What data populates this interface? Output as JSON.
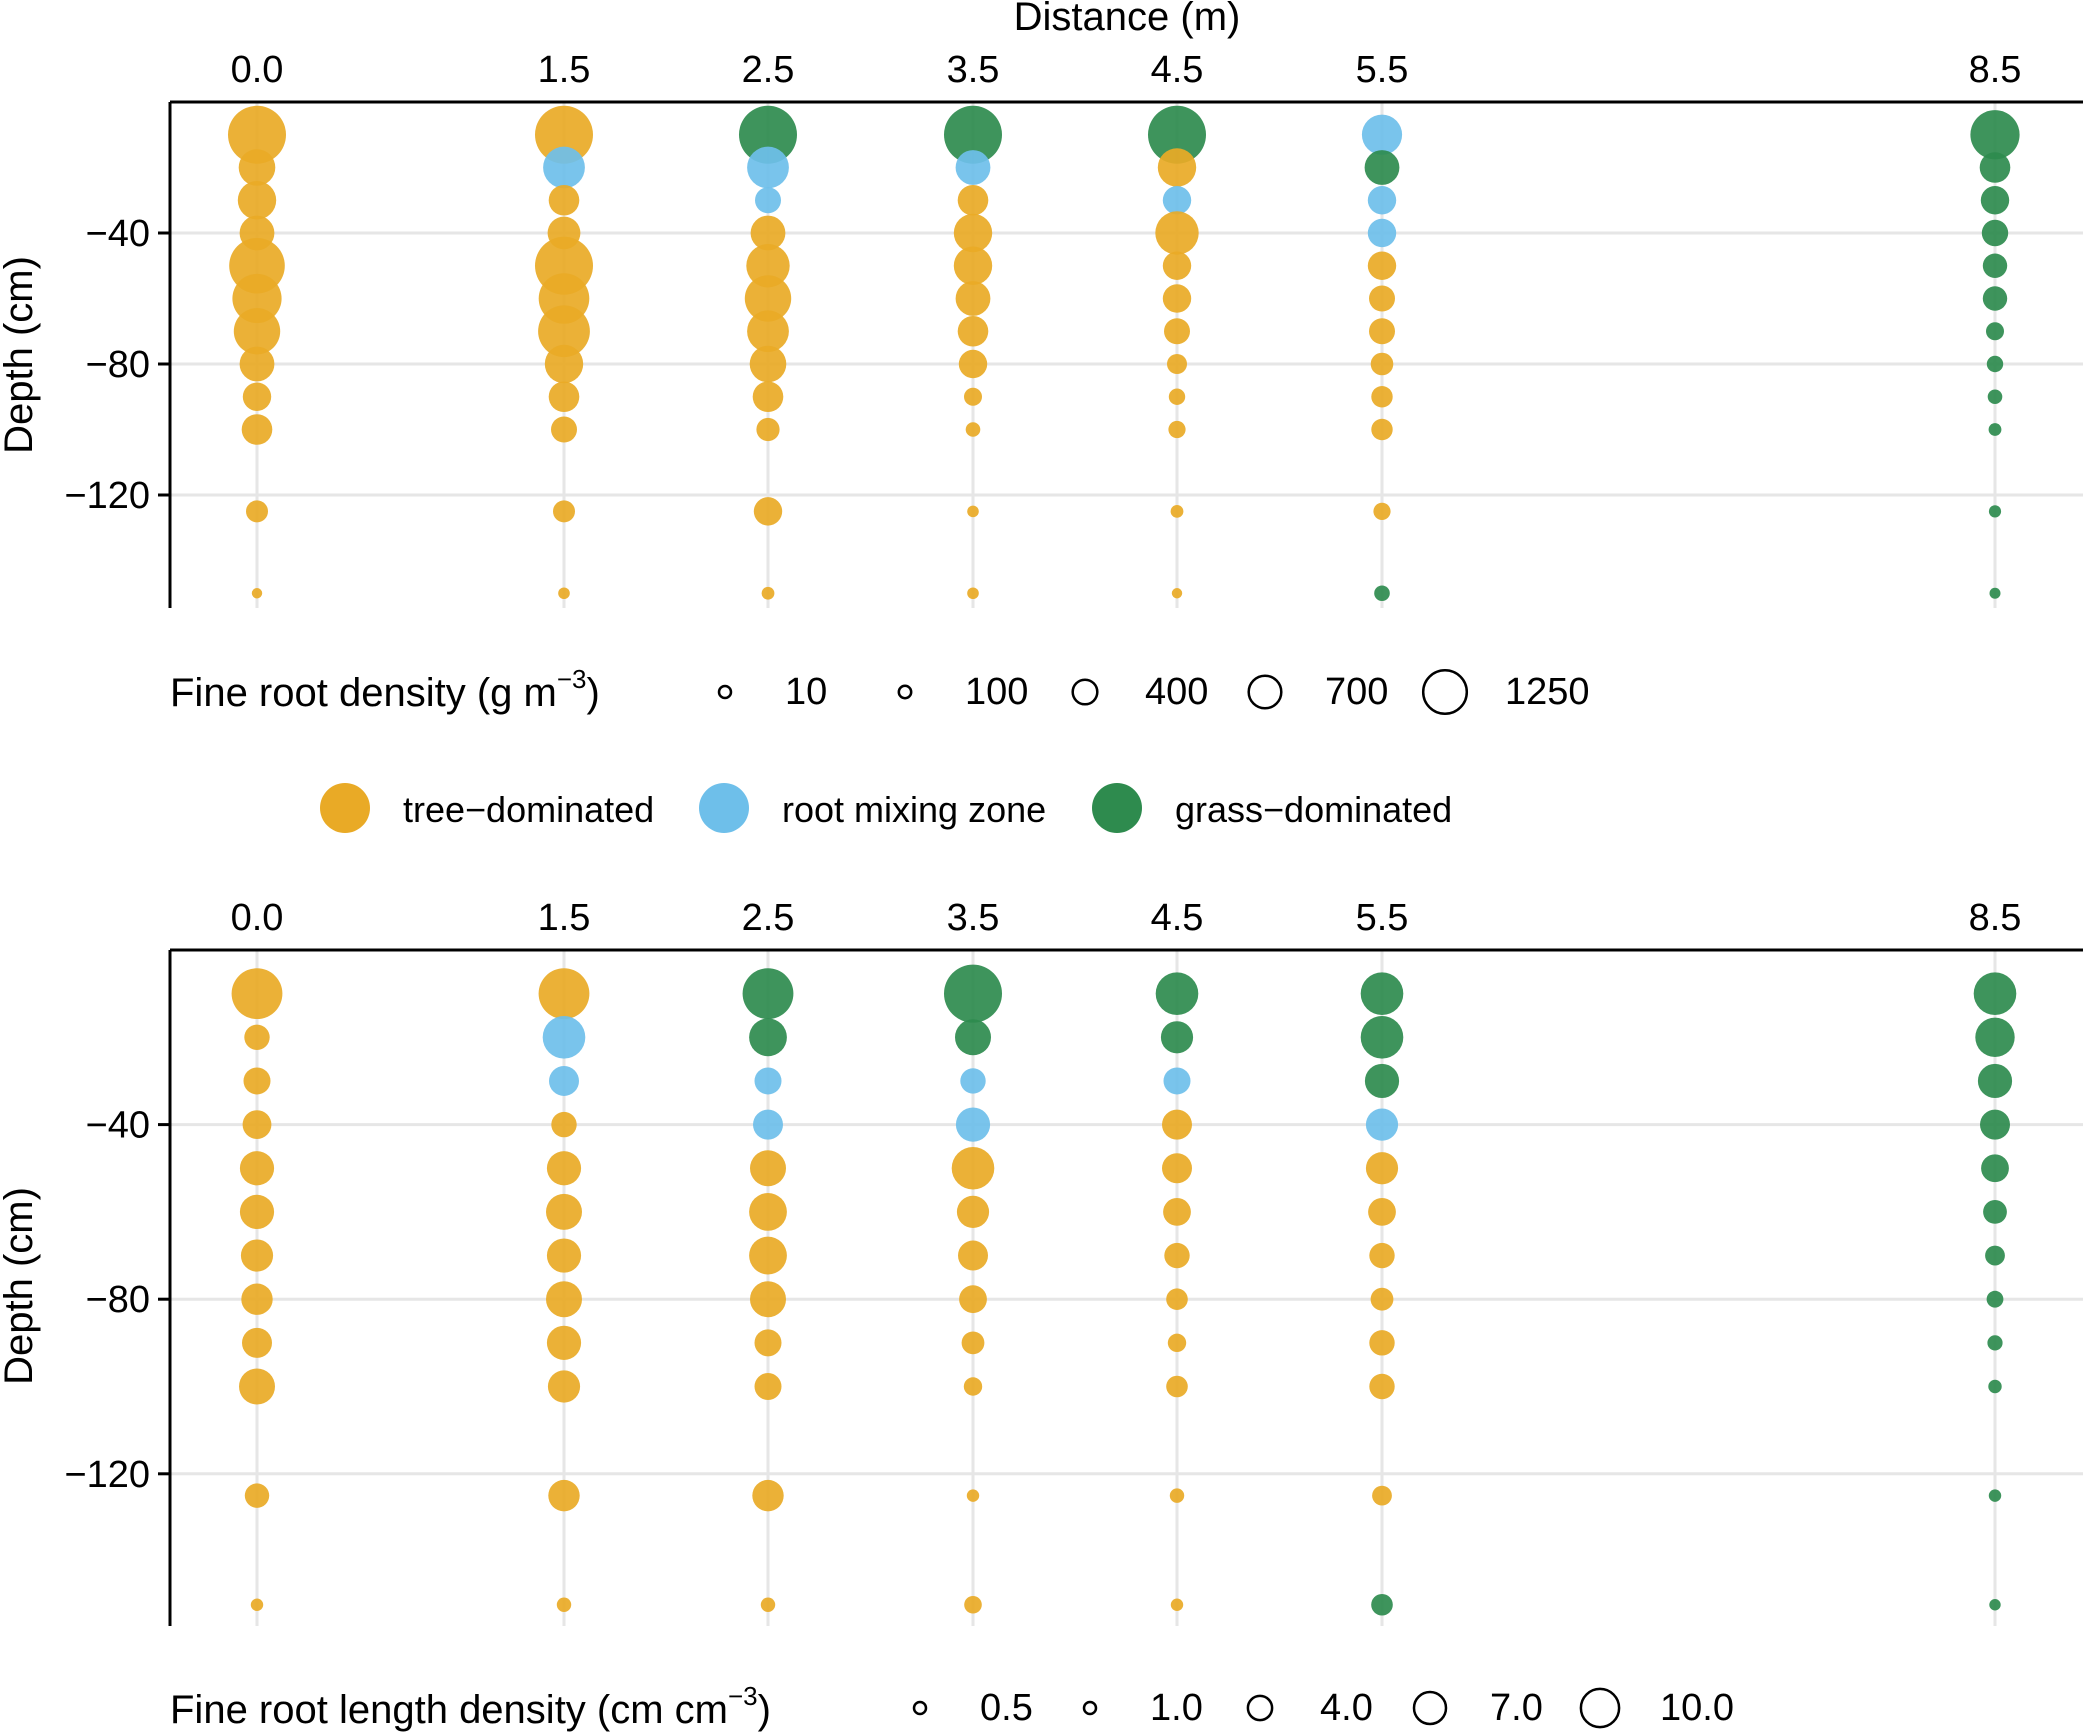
{
  "colors": {
    "tree": "#E9AA26",
    "mixing": "#6EBFEA",
    "grass": "#2E8B4E",
    "grid": "#E6E6E6"
  },
  "legend_categories": [
    {
      "key": "tree",
      "label": "tree−dominated"
    },
    {
      "key": "mixing",
      "label": "root mixing zone"
    },
    {
      "key": "grass",
      "label": "grass−dominated"
    }
  ],
  "chart_data": [
    {
      "type": "scatter",
      "id": "top",
      "title": "",
      "xlabel": "Distance (m)",
      "ylabel": "Depth (cm)",
      "x_ticks": [
        "0.0",
        "1.5",
        "2.5",
        "3.5",
        "4.5",
        "5.5",
        "8.5"
      ],
      "y_ticks": [
        {
          "value": -40,
          "label": "−40"
        },
        {
          "value": -80,
          "label": "−80"
        },
        {
          "value": -120,
          "label": "−120"
        }
      ],
      "ylim": [
        -155,
        0
      ],
      "depths": [
        -10,
        -20,
        -30,
        -40,
        -50,
        -60,
        -70,
        -80,
        -90,
        -100,
        -125,
        -150
      ],
      "size_legend": {
        "title": "Fine root density (g m",
        "title_sup": "−3",
        "title_end": ")",
        "values": [
          10,
          100,
          400,
          700,
          1250
        ],
        "labels": [
          "10",
          "100",
          "400",
          "700",
          "1250"
        ]
      },
      "series": [
        {
          "distance": "0.0",
          "values": [
            1250,
            500,
            550,
            450,
            1150,
            900,
            800,
            450,
            300,
            350,
            180,
            40
          ],
          "cats": [
            "tree",
            "tree",
            "tree",
            "tree",
            "tree",
            "tree",
            "tree",
            "tree",
            "tree",
            "tree",
            "tree",
            "tree"
          ]
        },
        {
          "distance": "1.5",
          "values": [
            1250,
            650,
            350,
            400,
            1250,
            950,
            1000,
            550,
            350,
            250,
            180,
            50
          ],
          "cats": [
            "tree",
            "mixing",
            "tree",
            "tree",
            "tree",
            "tree",
            "tree",
            "tree",
            "tree",
            "tree",
            "tree",
            "tree"
          ]
        },
        {
          "distance": "2.5",
          "values": [
            1250,
            650,
            250,
            450,
            700,
            800,
            650,
            500,
            350,
            200,
            300,
            60
          ],
          "cats": [
            "grass",
            "mixing",
            "mixing",
            "tree",
            "tree",
            "tree",
            "tree",
            "tree",
            "tree",
            "tree",
            "tree",
            "tree"
          ]
        },
        {
          "distance": "3.5",
          "values": [
            1250,
            450,
            350,
            550,
            550,
            450,
            350,
            300,
            120,
            80,
            50,
            50
          ],
          "cats": [
            "grass",
            "mixing",
            "tree",
            "tree",
            "tree",
            "tree",
            "tree",
            "tree",
            "tree",
            "tree",
            "tree",
            "tree"
          ]
        },
        {
          "distance": "4.5",
          "values": [
            1250,
            550,
            300,
            700,
            300,
            300,
            250,
            150,
            100,
            110,
            60,
            40
          ],
          "cats": [
            "grass",
            "tree",
            "mixing",
            "tree",
            "tree",
            "tree",
            "tree",
            "tree",
            "tree",
            "tree",
            "tree",
            "tree"
          ]
        },
        {
          "distance": "5.5",
          "values": [
            600,
            450,
            300,
            300,
            300,
            250,
            250,
            190,
            170,
            170,
            110,
            90
          ],
          "cats": [
            "mixing",
            "grass",
            "mixing",
            "mixing",
            "tree",
            "tree",
            "tree",
            "tree",
            "tree",
            "tree",
            "tree",
            "grass"
          ]
        },
        {
          "distance": "8.5",
          "values": [
            900,
            350,
            300,
            260,
            220,
            220,
            120,
            100,
            80,
            60,
            55,
            45
          ],
          "cats": [
            "grass",
            "grass",
            "grass",
            "grass",
            "grass",
            "grass",
            "grass",
            "grass",
            "grass",
            "grass",
            "grass",
            "grass"
          ]
        }
      ]
    },
    {
      "type": "scatter",
      "id": "bottom",
      "title": "",
      "xlabel": "",
      "ylabel": "Depth (cm)",
      "x_ticks": [
        "0.0",
        "1.5",
        "2.5",
        "3.5",
        "4.5",
        "5.5",
        "8.5"
      ],
      "y_ticks": [
        {
          "value": -40,
          "label": "−40"
        },
        {
          "value": -80,
          "label": "−80"
        },
        {
          "value": -120,
          "label": "−120"
        }
      ],
      "ylim": [
        -155,
        0
      ],
      "depths": [
        -10,
        -20,
        -30,
        -40,
        -50,
        -60,
        -70,
        -80,
        -90,
        -100,
        -125,
        -150
      ],
      "size_legend": {
        "title": "Fine root length density (cm cm",
        "title_sup": "−3",
        "title_end": ")",
        "values": [
          0.5,
          1.0,
          4.0,
          7.0,
          10.0
        ],
        "labels": [
          "0.5",
          "1.0",
          "4.0",
          "7.0",
          "10.0"
        ]
      },
      "series": [
        {
          "distance": "0.0",
          "values": [
            10.0,
            2.5,
            2.8,
            3.2,
            4.5,
            4.5,
            4.0,
            3.8,
            3.5,
            5.0,
            2.3,
            0.6
          ],
          "cats": [
            "tree",
            "tree",
            "tree",
            "tree",
            "tree",
            "tree",
            "tree",
            "tree",
            "tree",
            "tree",
            "tree",
            "tree"
          ]
        },
        {
          "distance": "1.5",
          "values": [
            10.0,
            7.0,
            3.5,
            2.5,
            4.5,
            5.0,
            4.5,
            5.0,
            4.5,
            4.0,
            3.8,
            0.8
          ],
          "cats": [
            "tree",
            "mixing",
            "mixing",
            "tree",
            "tree",
            "tree",
            "tree",
            "tree",
            "tree",
            "tree",
            "tree",
            "tree"
          ]
        },
        {
          "distance": "2.5",
          "values": [
            10.0,
            5.5,
            2.8,
            3.5,
            5.0,
            5.5,
            5.5,
            5.0,
            2.8,
            2.8,
            3.8,
            0.8
          ],
          "cats": [
            "grass",
            "grass",
            "mixing",
            "mixing",
            "tree",
            "tree",
            "tree",
            "tree",
            "tree",
            "tree",
            "tree",
            "tree"
          ]
        },
        {
          "distance": "3.5",
          "values": [
            13.0,
            5.0,
            2.5,
            4.5,
            7.0,
            4.0,
            3.5,
            3.0,
            2.0,
            1.3,
            0.6,
            1.2
          ],
          "cats": [
            "grass",
            "grass",
            "mixing",
            "mixing",
            "tree",
            "tree",
            "tree",
            "tree",
            "tree",
            "tree",
            "tree",
            "tree"
          ]
        },
        {
          "distance": "4.5",
          "values": [
            7.0,
            4.0,
            2.8,
            3.5,
            3.5,
            3.0,
            2.5,
            1.8,
            1.3,
            1.8,
            0.8,
            0.6
          ],
          "cats": [
            "grass",
            "grass",
            "mixing",
            "tree",
            "tree",
            "tree",
            "tree",
            "tree",
            "tree",
            "tree",
            "tree",
            "tree"
          ]
        },
        {
          "distance": "5.5",
          "values": [
            7.0,
            7.0,
            4.5,
            4.0,
            4.0,
            3.0,
            2.5,
            2.0,
            2.5,
            2.5,
            1.5,
            1.8
          ],
          "cats": [
            "grass",
            "grass",
            "grass",
            "mixing",
            "tree",
            "tree",
            "tree",
            "tree",
            "tree",
            "tree",
            "tree",
            "grass"
          ]
        },
        {
          "distance": "8.5",
          "values": [
            7.0,
            6.0,
            4.5,
            3.5,
            3.0,
            2.2,
            1.5,
            1.1,
            0.9,
            0.7,
            0.6,
            0.5
          ],
          "cats": [
            "grass",
            "grass",
            "grass",
            "grass",
            "grass",
            "grass",
            "grass",
            "grass",
            "grass",
            "grass",
            "grass",
            "grass"
          ]
        }
      ]
    }
  ]
}
